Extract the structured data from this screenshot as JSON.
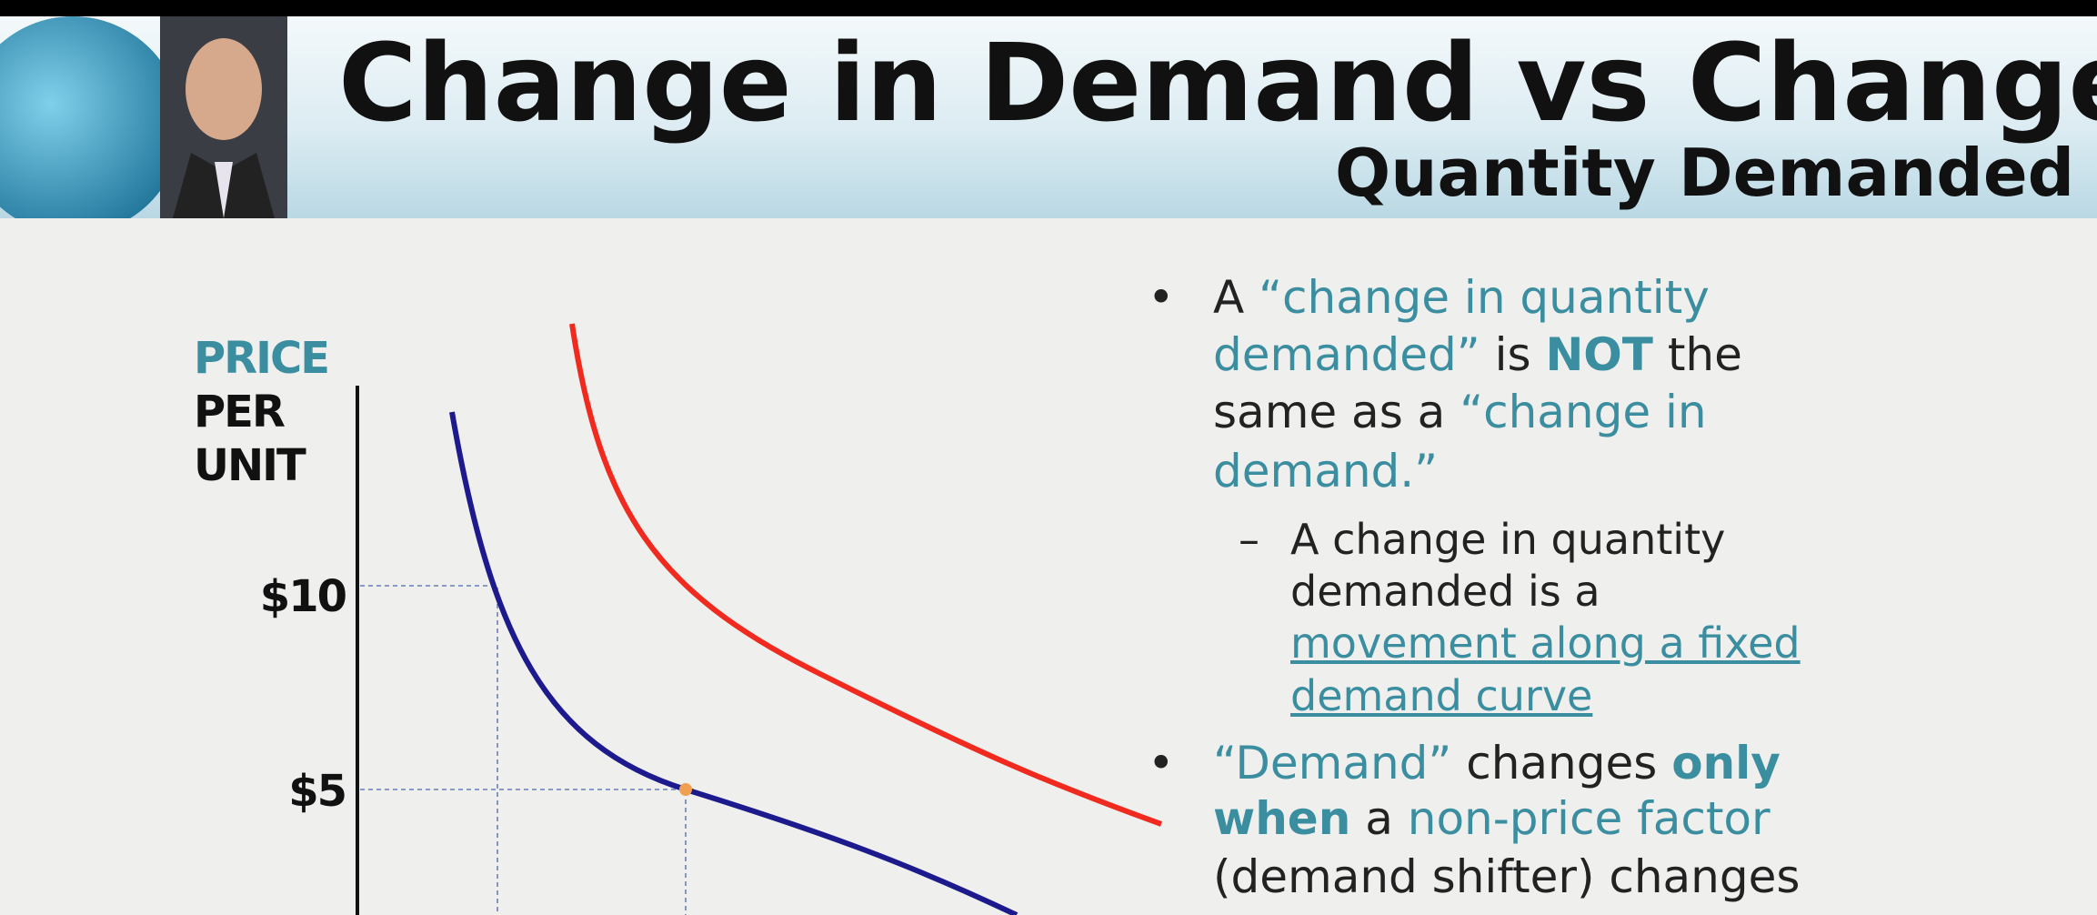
{
  "header": {
    "title": "Change in Demand vs Change in",
    "subtitle": "Quantity Demanded"
  },
  "diagram": {
    "axis_label": [
      "PRICE",
      "PER",
      "UNIT"
    ],
    "price_labels": [
      "$10",
      "$5"
    ]
  },
  "bullets": [
    {
      "lines": [
        [
          "A",
          "“change in quantity"
        ],
        [
          "demanded”",
          "is",
          "NOT",
          "the"
        ],
        [
          "same as a",
          "“change in"
        ],
        [
          "demand.”"
        ]
      ],
      "sub": [
        "A change in quantity",
        "demanded is a",
        "movement along a fixed",
        "demand curve"
      ]
    },
    {
      "lines": [
        [
          "“Demand”",
          "changes",
          "only"
        ],
        [
          "when",
          "a",
          "non-price factor"
        ],
        [
          "(demand shifter) changes"
        ]
      ]
    }
  ]
}
